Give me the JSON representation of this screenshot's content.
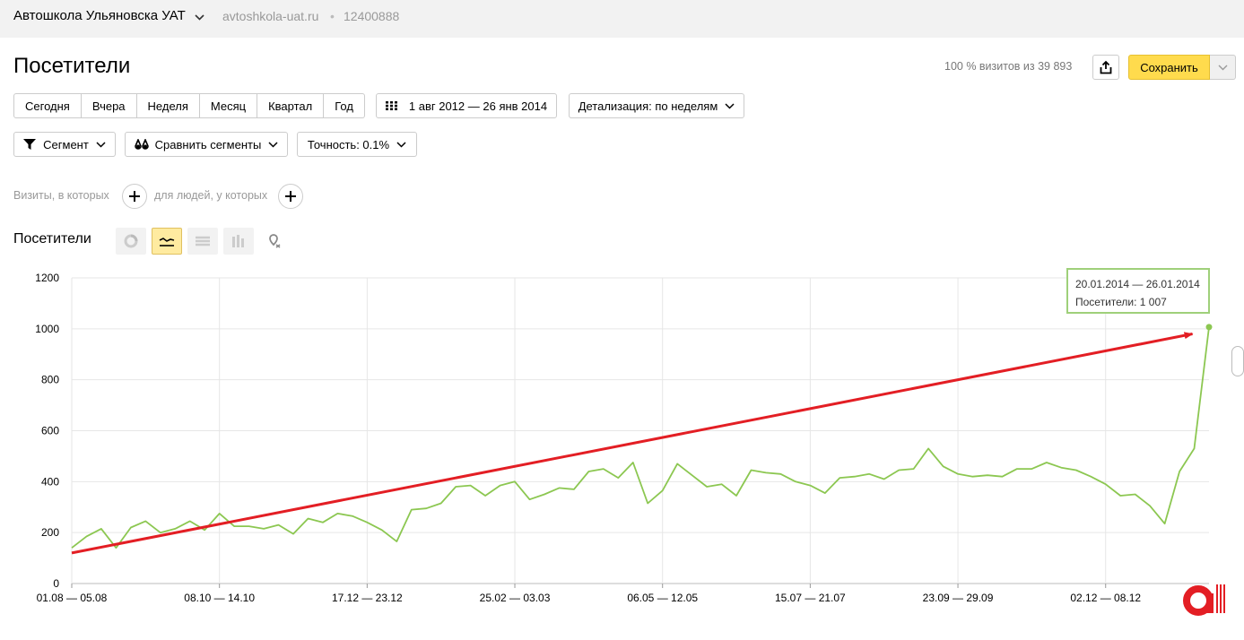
{
  "header": {
    "site_name": "Автошкола Ульяновска УАТ",
    "site_url": "avtoshkola-uat.ru",
    "separator": "•",
    "counter_id": "12400888"
  },
  "page": {
    "title": "Посетители",
    "visits_info": "100 % визитов из 39 893",
    "save_label": "Сохранить"
  },
  "periods": [
    "Сегодня",
    "Вчера",
    "Неделя",
    "Месяц",
    "Квартал",
    "Год"
  ],
  "date_range": "1 авг 2012 — 26 янв 2014",
  "detail": "Детализация: по неделям",
  "segment": "Сегмент",
  "compare": "Сравнить сегменты",
  "accuracy": "Точность: 0.1%",
  "filters": {
    "visits_label": "Визиты, в которых",
    "people_label": "для людей, у которых"
  },
  "chart_section": {
    "title": "Посетители"
  },
  "tooltip": {
    "range": "20.01.2014 — 26.01.2014",
    "value": "Посетители: 1 007"
  },
  "colors": {
    "line": "#8cc751",
    "arrow": "#e31e24",
    "save": "#ffdb4d",
    "logo": "#e31e24"
  },
  "chart_data": {
    "type": "line",
    "xlabel": "",
    "ylabel": "",
    "ylim": [
      0,
      1200
    ],
    "yticks": [
      0,
      200,
      400,
      600,
      800,
      1000,
      1200
    ],
    "x_tick_labels": [
      "01.08 — 05.08",
      "08.10 — 14.10",
      "17.12 — 23.12",
      "25.02 — 03.03",
      "06.05 — 12.05",
      "15.07 — 21.07",
      "23.09 — 29.09",
      "02.12 — 08.12"
    ],
    "x_tick_every": 10,
    "series": [
      {
        "values": [
          140,
          185,
          215,
          140,
          220,
          245,
          200,
          215,
          245,
          210,
          275,
          225,
          225,
          215,
          230,
          195,
          255,
          240,
          275,
          265,
          240,
          210,
          165,
          290,
          295,
          315,
          380,
          385,
          345,
          385,
          400,
          330,
          350,
          375,
          370,
          440,
          450,
          415,
          475,
          315,
          365,
          470,
          425,
          380,
          390,
          345,
          445,
          435,
          430,
          400,
          385,
          355,
          415,
          420,
          430,
          410,
          445,
          450,
          530,
          460,
          430,
          420,
          425,
          420,
          450,
          450,
          475,
          455,
          445,
          420,
          390,
          345,
          350,
          305,
          235,
          440,
          530,
          1007
        ]
      }
    ],
    "trend_arrow": {
      "from": [
        0,
        120
      ],
      "to": [
        76,
        980
      ]
    }
  }
}
